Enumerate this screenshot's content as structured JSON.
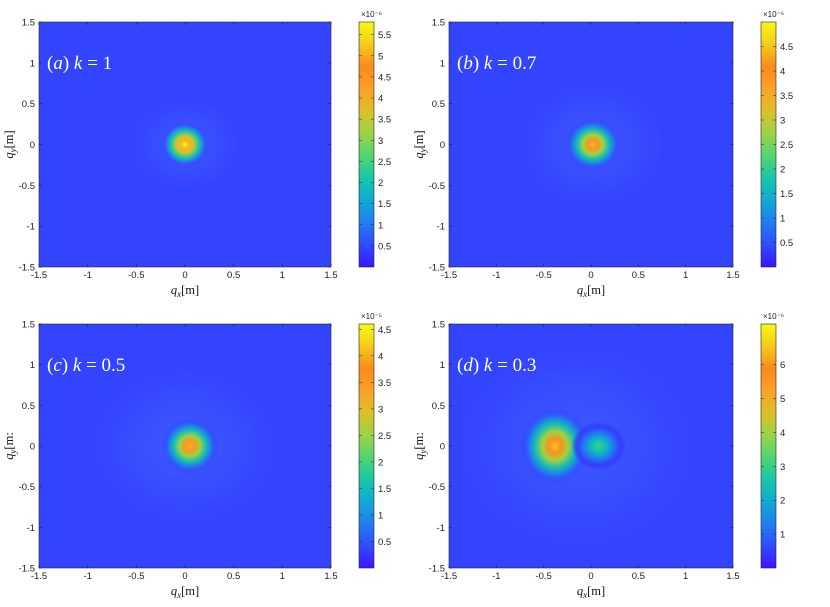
{
  "colors": {
    "background": "#3344ff",
    "colormap": [
      "#3c14ff",
      "#2f4cfb",
      "#1f7ff0",
      "#12a9d4",
      "#18c7a8",
      "#52d572",
      "#9cd344",
      "#dcc02a",
      "#fba12a",
      "#f98a1c",
      "#f3cc1a",
      "#f8f812"
    ]
  },
  "chart_data": [
    {
      "type": "heatmap",
      "panel_label": "(a) k = 1",
      "label_text": {
        "open": "(",
        "letter": "a",
        "close": ")",
        "var": "k",
        "eq": " = ",
        "value": "1"
      },
      "xlabel": {
        "base": "q",
        "sub": "x",
        "unit": "[m]"
      },
      "ylabel": {
        "base": "q",
        "sub": "y",
        "unit": "[m]"
      },
      "xlim": [
        -1.5,
        1.5
      ],
      "ylim": [
        -1.5,
        1.5
      ],
      "xticks": [
        "-1.5",
        "-1",
        "-0.5",
        "0",
        "0.5",
        "1",
        "1.5"
      ],
      "yticks": [
        "1.5",
        "1",
        "0.5",
        "0",
        "-0.5",
        "-1",
        "-1.5"
      ],
      "colorbar": {
        "multiplier": "×10⁻⁶",
        "min": 0,
        "max": 5.8,
        "ticks": [
          "5.5",
          "5",
          "4.5",
          "4",
          "3.5",
          "3",
          "2.5",
          "2",
          "1.5",
          "1",
          "0.5"
        ],
        "tick_values": [
          5.5,
          5,
          4.5,
          4,
          3.5,
          3,
          2.5,
          2,
          1.5,
          1,
          0.5
        ]
      },
      "peaks": [
        {
          "x": 0.0,
          "y": 0.0,
          "value": 5.8,
          "sx": 0.1,
          "sy": 0.13
        }
      ],
      "halo": {
        "x": 0.0,
        "y": 0.0,
        "radius": 0.55
      }
    },
    {
      "type": "heatmap",
      "panel_label": "(b) k = 0.7",
      "label_text": {
        "open": "(",
        "letter": "b",
        "close": ")",
        "var": "k",
        "eq": " = ",
        "value": "0.7"
      },
      "xlabel": {
        "base": "q",
        "sub": "x",
        "unit": "[m]"
      },
      "ylabel": {
        "base": "q",
        "sub": "y",
        "unit": "[m]"
      },
      "xlim": [
        -1.5,
        1.5
      ],
      "ylim": [
        -1.5,
        1.5
      ],
      "xticks": [
        "-1.5",
        "-1",
        "-0.5",
        "0",
        "0.5",
        "1",
        "1.5"
      ],
      "yticks": [
        "1.5",
        "1",
        "0.5",
        "0",
        "-0.5",
        "-1",
        "-1.5"
      ],
      "colorbar": {
        "multiplier": "×10⁻⁶",
        "min": 0,
        "max": 5.0,
        "ticks": [
          "4.5",
          "4",
          "3.5",
          "3",
          "2.5",
          "2",
          "1.5",
          "1",
          "0.5"
        ],
        "tick_values": [
          4.5,
          4,
          3.5,
          3,
          2.5,
          2,
          1.5,
          1,
          0.5
        ]
      },
      "peaks": [
        {
          "x": 0.02,
          "y": 0.0,
          "value": 4.4,
          "sx": 0.12,
          "sy": 0.15
        }
      ],
      "halo": {
        "x": 0.02,
        "y": 0.0,
        "radius": 0.75
      }
    },
    {
      "type": "heatmap",
      "panel_label": "(c) k = 0.5",
      "label_text": {
        "open": "(",
        "letter": "c",
        "close": ")",
        "var": "k",
        "eq": " = ",
        "value": "0.5"
      },
      "xlabel": {
        "base": "q",
        "sub": "x",
        "unit": "[m]"
      },
      "ylabel": {
        "base": "q",
        "sub": "y",
        "unit": "[m:"
      },
      "xlim": [
        -1.5,
        1.5
      ],
      "ylim": [
        -1.5,
        1.5
      ],
      "xticks": [
        "-1.5",
        "-1",
        "-0.5",
        "0",
        "0.5",
        "1",
        "1.5"
      ],
      "yticks": [
        "1.5",
        "1",
        "0.5",
        "0",
        "-0.5",
        "-1",
        "-1.5"
      ],
      "colorbar": {
        "multiplier": "×10⁻⁵",
        "min": 0,
        "max": 4.6,
        "ticks": [
          "4.5",
          "4",
          "3.5",
          "3",
          "2.5",
          "2",
          "1.5",
          "1",
          "0.5"
        ],
        "tick_values": [
          4.5,
          4,
          3.5,
          3,
          2.5,
          2,
          1.5,
          1,
          0.5
        ]
      },
      "peaks": [
        {
          "x": 0.05,
          "y": 0.0,
          "value": 4.0,
          "sx": 0.12,
          "sy": 0.16
        }
      ],
      "halo": {
        "x": 0.0,
        "y": 0.0,
        "radius": 0.95
      }
    },
    {
      "type": "heatmap",
      "panel_label": "(d) k = 0.3",
      "label_text": {
        "open": "(",
        "letter": "d",
        "close": ")",
        "var": "k",
        "eq": " = ",
        "value": "0.3"
      },
      "xlabel": {
        "base": "q",
        "sub": "x",
        "unit": "[m]"
      },
      "ylabel": {
        "base": "q",
        "sub": "y",
        "unit": "[m:"
      },
      "xlim": [
        -1.5,
        1.5
      ],
      "ylim": [
        -1.5,
        1.5
      ],
      "xticks": [
        "-1.5",
        "-1",
        "-0.5",
        "0",
        "0.5",
        "1",
        "1.5"
      ],
      "yticks": [
        "1.5",
        "1",
        "0.5",
        "0",
        "-0.5",
        "-1",
        "-1.5"
      ],
      "colorbar": {
        "multiplier": "×10⁻⁶",
        "min": 0,
        "max": 7.2,
        "ticks": [
          "6",
          "5",
          "4",
          "3",
          "2",
          "1"
        ],
        "tick_values": [
          6,
          5,
          4,
          3,
          2,
          1
        ]
      },
      "peaks": [
        {
          "x": -0.38,
          "y": 0.0,
          "value": 6.5,
          "sx": 0.15,
          "sy": 0.22
        },
        {
          "x": 0.08,
          "y": 0.0,
          "value": 3.0,
          "sx": 0.12,
          "sy": 0.14
        }
      ],
      "halo": {
        "x": -0.15,
        "y": 0.0,
        "radius": 1.25
      }
    }
  ]
}
